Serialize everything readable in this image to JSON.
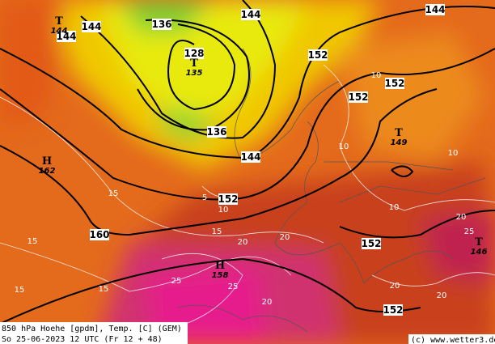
{
  "map": {
    "height_labels": [
      144,
      144,
      144,
      136,
      128,
      152,
      152,
      152,
      136,
      144,
      152,
      160,
      152,
      152,
      144
    ],
    "centers": [
      {
        "letter": "T",
        "value": 144
      },
      {
        "letter": "T",
        "value": 135
      },
      {
        "letter": "H",
        "value": 162
      },
      {
        "letter": "T",
        "value": 149
      },
      {
        "letter": "H",
        "value": 158
      },
      {
        "letter": "T",
        "value": 146
      }
    ],
    "temperature_labels": [
      10,
      10,
      10,
      10,
      15,
      15,
      15,
      15,
      15,
      20,
      20,
      20,
      20,
      20,
      20,
      25,
      25,
      25,
      5,
      10
    ]
  },
  "footer": {
    "line1": "850 hPa Hoehe [gpdm], Temp. [C] (GEM)",
    "line2": "So 25-06-2023 12 UTC (Fr 12 + 48)",
    "credit": "(c) www.wetter3.de"
  }
}
